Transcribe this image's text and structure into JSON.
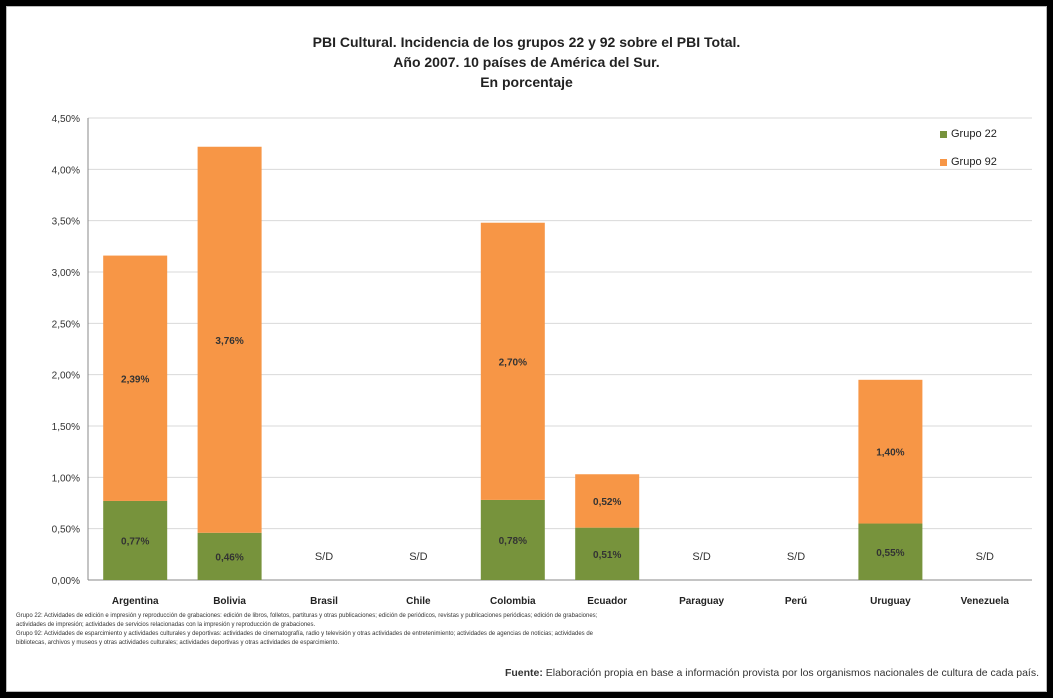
{
  "chart_data": {
    "type": "bar",
    "stacked": true,
    "title_lines": [
      "PBI Cultural. Incidencia de los grupos 22 y 92 sobre el PBI Total.",
      "Año 2007. 10 países de América del Sur.",
      "En porcentaje"
    ],
    "categories": [
      "Argentina",
      "Bolivia",
      "Brasil",
      "Chile",
      "Colombia",
      "Ecuador",
      "Paraguay",
      "Perú",
      "Uruguay",
      "Venezuela"
    ],
    "series": [
      {
        "name": "Grupo 22",
        "color": "#77933c",
        "values": [
          0.77,
          0.46,
          null,
          null,
          0.78,
          0.51,
          null,
          null,
          0.55,
          null
        ],
        "labels": [
          "0,77%",
          "0,46%",
          "",
          "",
          "0,78%",
          "0,51%",
          "",
          "",
          "0,55%",
          ""
        ]
      },
      {
        "name": "Grupo 92",
        "color": "#f79646",
        "values": [
          2.39,
          3.76,
          null,
          null,
          2.7,
          0.52,
          null,
          null,
          1.4,
          null
        ],
        "labels": [
          "2,39%",
          "3,76%",
          "",
          "",
          "2,70%",
          "0,52%",
          "",
          "",
          "1,40%",
          ""
        ]
      }
    ],
    "no_data_label": "S/D",
    "ylim": [
      0,
      4.5
    ],
    "yticks": [
      "0,00%",
      "0,50%",
      "1,00%",
      "1,50%",
      "2,00%",
      "2,50%",
      "3,00%",
      "3,50%",
      "4,00%",
      "4,50%"
    ],
    "grid": true,
    "legend_position": "top-right"
  },
  "notes": [
    "Grupo 22: Actividades de edición e impresión y reproducción de grabaciones: edición de libros, folletos, partituras y otras publicaciones; edición de periódicos, revistas y publicaciones periódicas; edición de grabaciones;",
    "actividades de impresión; actividades de servicios relacionadas con la impresión y reproducción de grabaciones.",
    "Grupo 92: Actividades de esparcimiento y actividades culturales y deportivas: actividades de cinematografía, radio y televisión y otras actividades de entretenimiento; actividades de agencias de noticias; actividades de",
    "bibliotecas, archivos y museos y otras actividades culturales; actividades deportivas y otras actividades de esparcimiento."
  ],
  "source": {
    "label": "Fuente:",
    "text": "Elaboración propia en base a información provista por los organismos nacionales de cultura de cada país."
  }
}
